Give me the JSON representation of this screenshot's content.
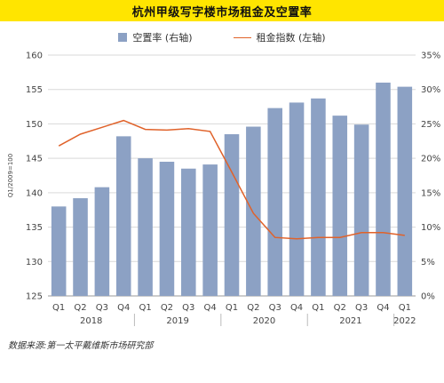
{
  "title": "杭州甲级写字楼市场租金及空置率",
  "source": "数据来源:第一太平戴维斯市场研究部",
  "chart_data": {
    "type": "bar+line",
    "categories": [
      "Q1",
      "Q2",
      "Q3",
      "Q4",
      "Q1",
      "Q2",
      "Q3",
      "Q4",
      "Q1",
      "Q2",
      "Q3",
      "Q4",
      "Q1",
      "Q2",
      "Q3",
      "Q4",
      "Q1"
    ],
    "years": [
      {
        "label": "2018",
        "from": 0,
        "to": 3
      },
      {
        "label": "2019",
        "from": 4,
        "to": 7
      },
      {
        "label": "2020",
        "from": 8,
        "to": 11
      },
      {
        "label": "2021",
        "from": 12,
        "to": 15
      },
      {
        "label": "2022",
        "from": 16,
        "to": 16
      }
    ],
    "series": [
      {
        "name": "空置率 (右轴)",
        "type": "bar",
        "axis": "right",
        "color": "#8ca1c4",
        "values": [
          13.0,
          14.2,
          15.8,
          23.2,
          20.0,
          19.5,
          18.5,
          19.1,
          23.5,
          24.6,
          27.3,
          28.1,
          28.7,
          26.2,
          24.9,
          31.0,
          30.4
        ]
      },
      {
        "name": "租金指数 (左轴)",
        "type": "line",
        "axis": "left",
        "color": "#e0622a",
        "values": [
          146.8,
          148.5,
          149.5,
          150.5,
          149.2,
          149.1,
          149.3,
          148.9,
          143.0,
          137.0,
          133.5,
          133.3,
          133.5,
          133.5,
          134.2,
          134.2,
          133.8
        ]
      }
    ],
    "left_axis": {
      "label": "Q1/2009=100",
      "min": 125,
      "max": 160,
      "ticks": [
        125,
        130,
        135,
        140,
        145,
        150,
        155,
        160
      ]
    },
    "right_axis": {
      "min": 0,
      "max": 35,
      "ticks": [
        "0%",
        "5%",
        "10%",
        "15%",
        "20%",
        "25%",
        "30%",
        "35%"
      ]
    },
    "grid": true,
    "legend_position": "top"
  }
}
